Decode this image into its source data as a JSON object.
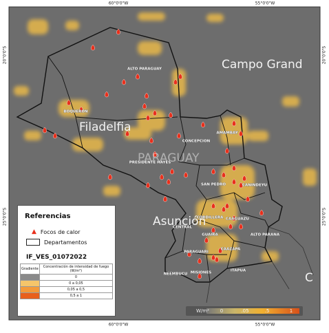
{
  "coordinates": {
    "top": [
      "60°0'0\"W",
      "55°0'0\"W"
    ],
    "bottom": [
      "60°0'0\"W",
      "55°0'0\"W"
    ],
    "left": [
      "20°0'0\"S",
      "25°0'0\"S"
    ],
    "right": [
      "20°0'0\"S",
      "25°0'0\"S"
    ]
  },
  "places": [
    "Campo Grand",
    "Filadelfia",
    "PARAGUAY",
    "Asunción",
    "C"
  ],
  "departments": [
    "ALTO PARAGUAY",
    "BOQUERON",
    "PRESIDENTE HAYES",
    "CONCEPCION",
    "AMAMBAY",
    "SAN PEDRO",
    "CANINDEYU",
    "CORDILLERA",
    "CENTRAL",
    "CAAGUAZU",
    "GUAIRA",
    "ALTO PARANA",
    "CAAZAPA",
    "PARAGUARI",
    "NEEMBUCU",
    "MISIONES",
    "ITAPUA"
  ],
  "legend": {
    "title": "Referencias",
    "items": [
      "Focos de calor",
      "Departamentos"
    ],
    "layer": "IF_VES_01072022",
    "table": {
      "header": [
        "Gradiente",
        "Concentración de intensidad de fuego (W/m²)"
      ],
      "rows": [
        "0",
        "0 a 0,05",
        "0,05 a 0,5",
        "0,5 a 1"
      ],
      "colors": [
        "#8a8a8a",
        "#f5c56a",
        "#f39a3a",
        "#e8601c"
      ]
    }
  },
  "colorbar": {
    "unit": "W/m²",
    "labels": [
      "0",
      ".05",
      ".5",
      "1"
    ]
  }
}
